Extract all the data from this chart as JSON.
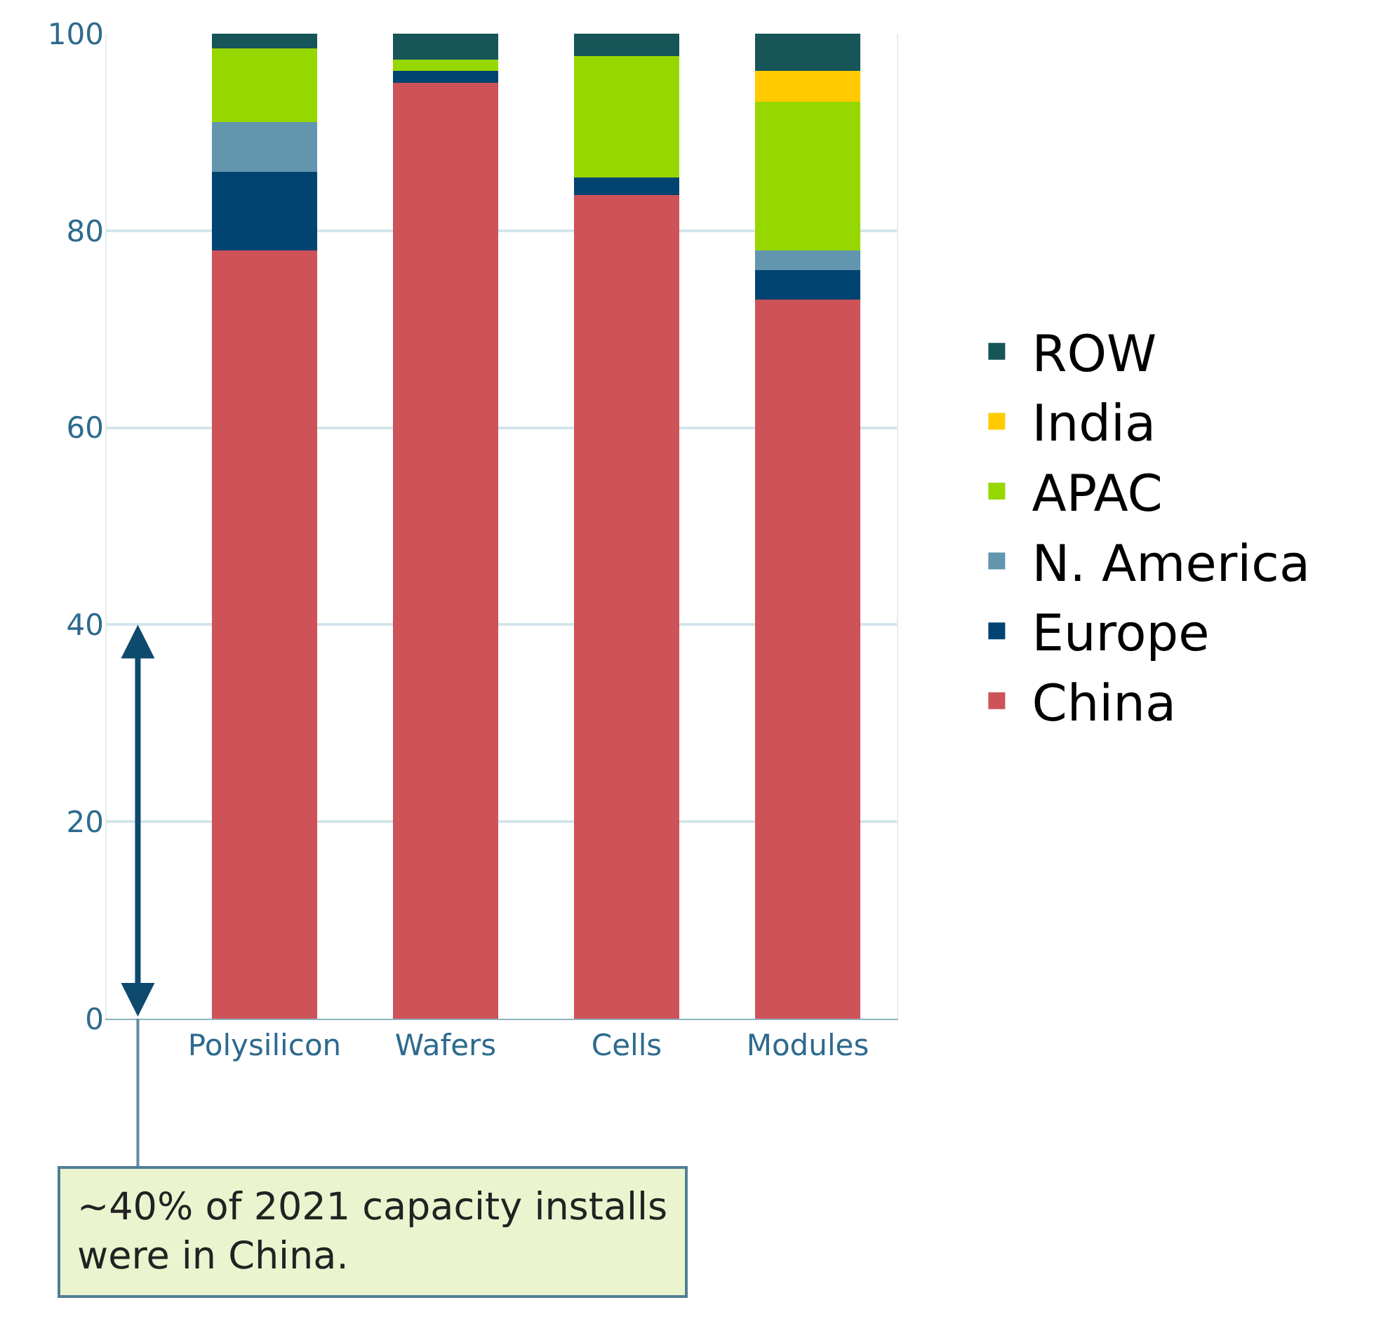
{
  "chart_data": {
    "type": "bar",
    "stacked": true,
    "categories": [
      "Polysilicon",
      "Wafers",
      "Cells",
      "Modules"
    ],
    "series": [
      {
        "name": "China",
        "color": "#cd5358",
        "values": [
          78,
          95,
          83.6,
          73
        ]
      },
      {
        "name": "Europe",
        "color": "#024471",
        "values": [
          8,
          1.2,
          1.8,
          3
        ]
      },
      {
        "name": "N. America",
        "color": "#6196ae",
        "values": [
          5,
          0,
          0,
          2
        ]
      },
      {
        "name": "APAC",
        "color": "#97d700",
        "values": [
          7.5,
          1.2,
          12.3,
          15.1
        ]
      },
      {
        "name": "India",
        "color": "#ffcb00",
        "values": [
          0,
          0,
          0,
          3.1
        ]
      },
      {
        "name": "ROW",
        "color": "#175559",
        "values": [
          1.5,
          2.6,
          2.3,
          3.8
        ]
      }
    ],
    "ylim": [
      0,
      100
    ],
    "yticks": [
      0,
      20,
      40,
      60,
      80,
      100
    ],
    "grid": "y",
    "legend": "right",
    "annotations": [
      "~40% of 2021 capacity installs were in China."
    ]
  }
}
